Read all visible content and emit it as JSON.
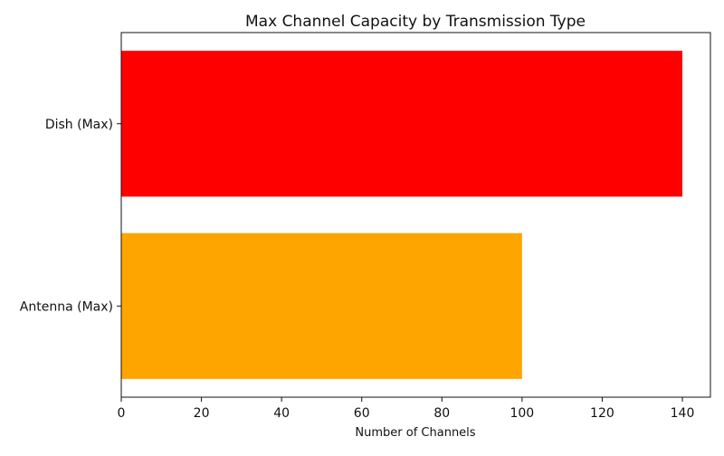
{
  "chart_data": {
    "type": "bar",
    "orientation": "horizontal",
    "title": "Max Channel Capacity by Transmission Type",
    "xlabel": "Number of Channels",
    "ylabel": "",
    "categories": [
      "Antenna (Max)",
      "Dish (Max)"
    ],
    "values": [
      100,
      140
    ],
    "colors": [
      "#FFA500",
      "#FF0000"
    ],
    "xlim": [
      0,
      147
    ],
    "xticks": [
      0,
      20,
      40,
      60,
      80,
      100,
      120,
      140
    ],
    "grid": false,
    "legend": false
  }
}
